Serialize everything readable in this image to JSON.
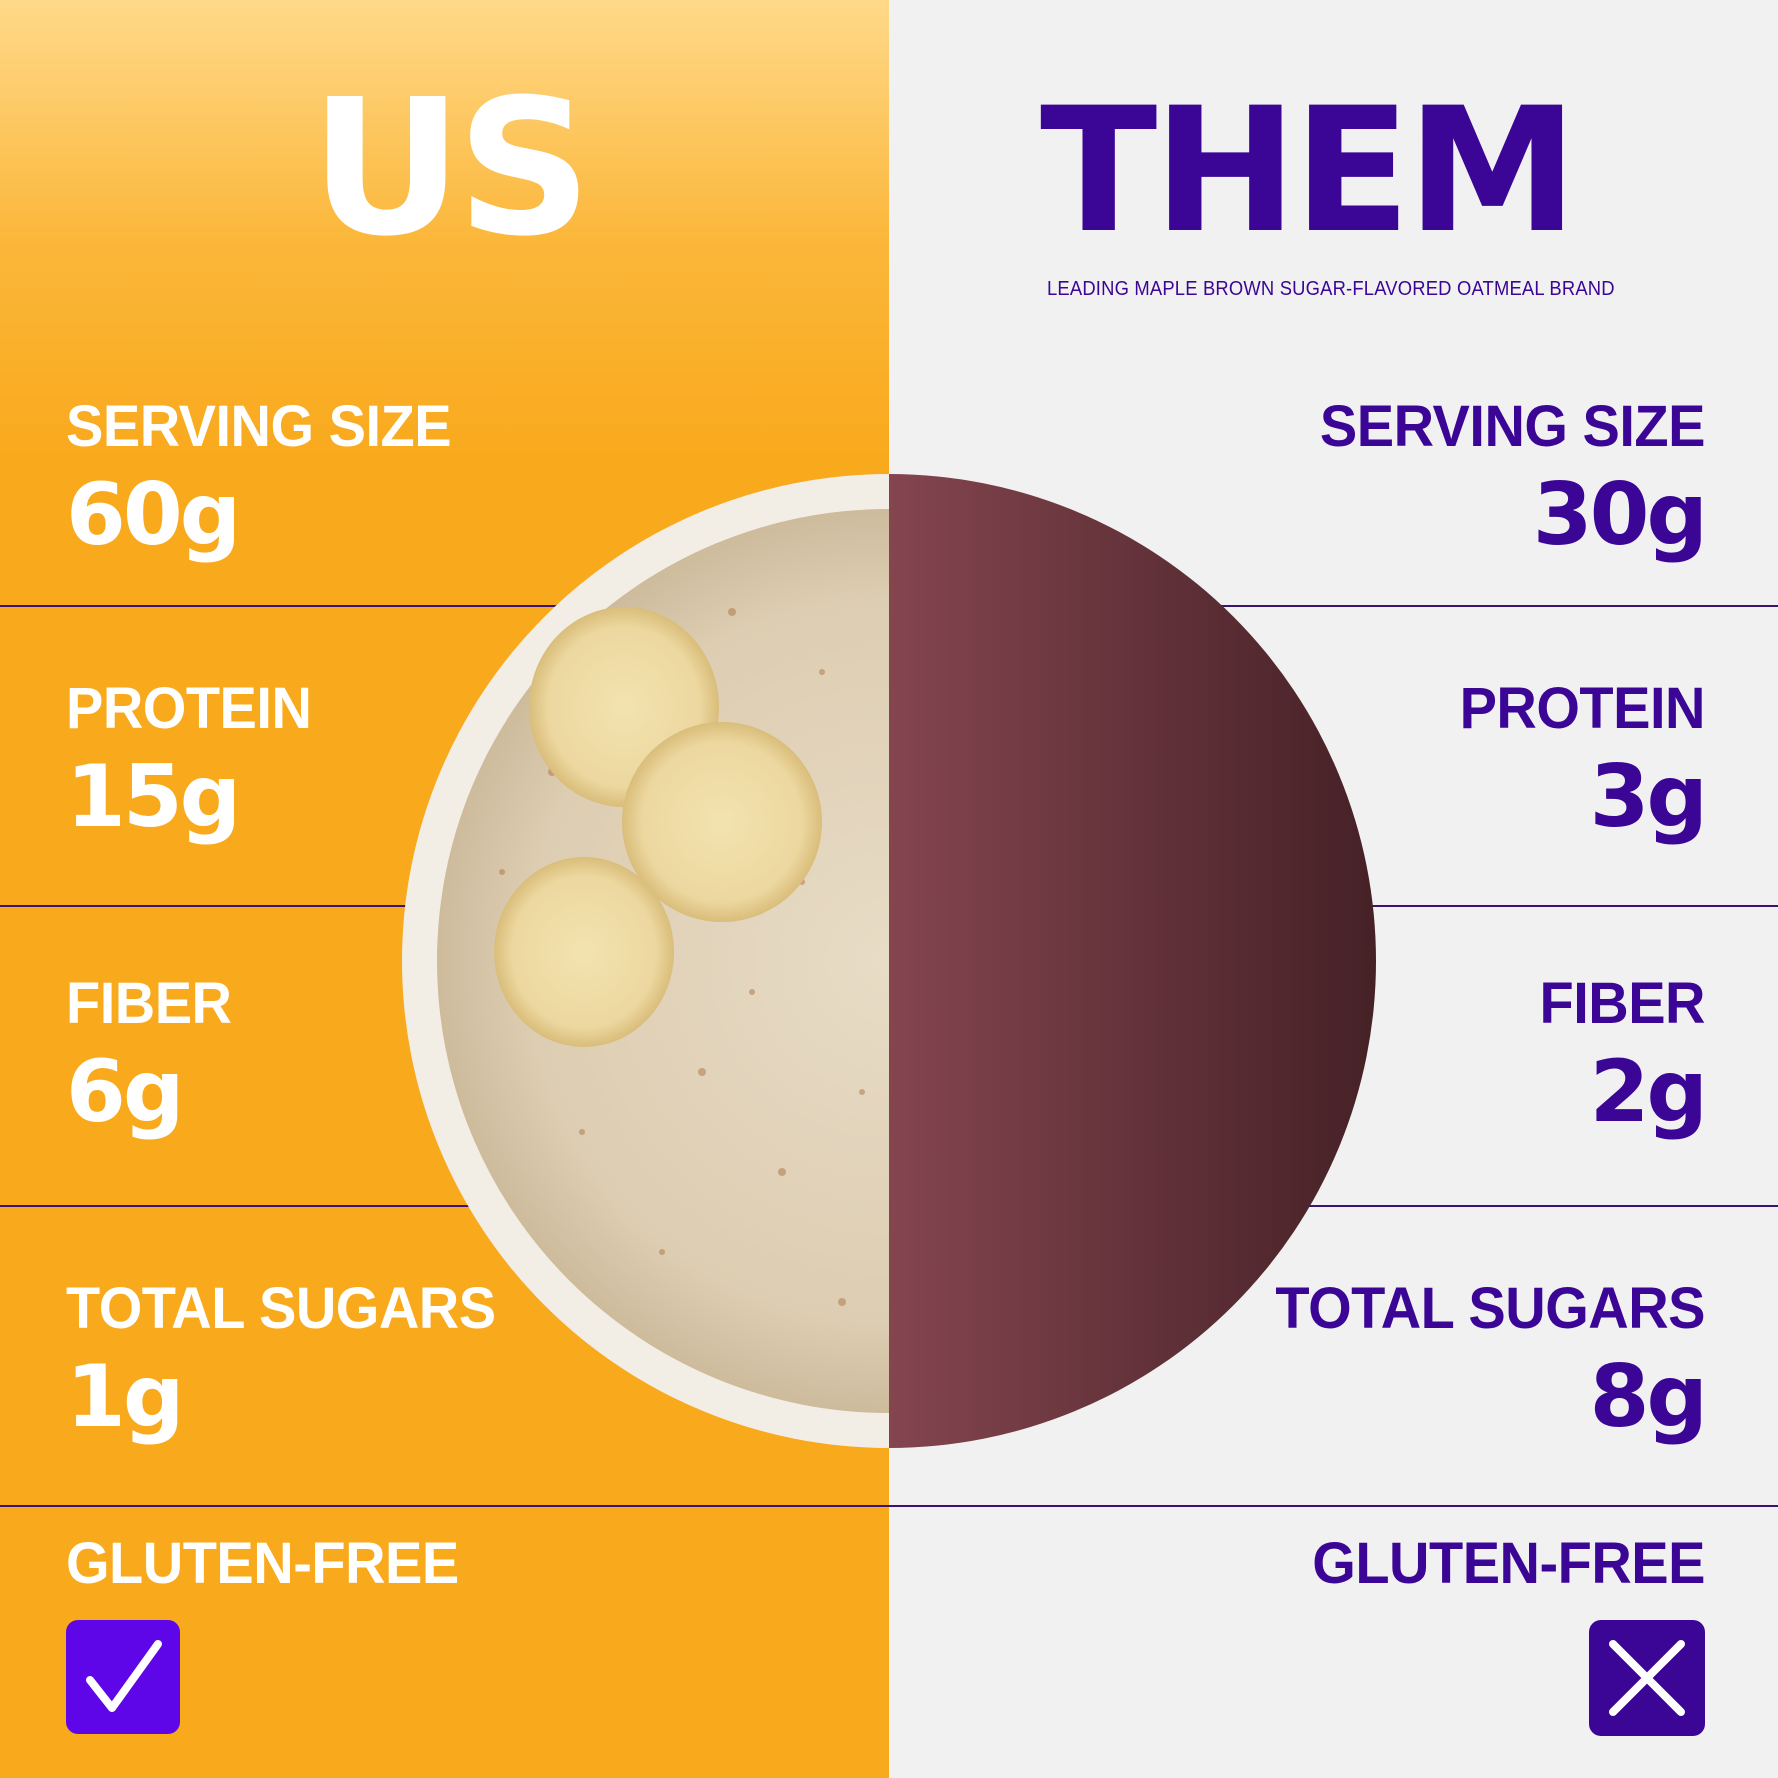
{
  "us": {
    "title": "US",
    "metrics": [
      {
        "label": "SERVING SIZE",
        "value": "60g"
      },
      {
        "label": "PROTEIN",
        "value": "15g"
      },
      {
        "label": "FIBER",
        "value": "6g"
      },
      {
        "label": "TOTAL SUGARS",
        "value": "1g"
      }
    ],
    "gluten_free_label": "GLUTEN-FREE",
    "gluten_free_icon": "checkmark-icon"
  },
  "them": {
    "title": "THEM",
    "subtitle": "LEADING MAPLE BROWN SUGAR-FLAVORED OATMEAL BRAND",
    "metrics": [
      {
        "label": "SERVING SIZE",
        "value": "30g"
      },
      {
        "label": "PROTEIN",
        "value": "3g"
      },
      {
        "label": "FIBER",
        "value": "2g"
      },
      {
        "label": "TOTAL SUGARS",
        "value": "8g"
      }
    ],
    "gluten_free_label": "GLUTEN-FREE",
    "gluten_free_icon": "x-mark-icon"
  },
  "colors": {
    "us_background": "#f9a91c",
    "them_background": "#f1f1f1",
    "them_text": "#3b0695",
    "check_box": "#5f06e8",
    "divider": "#3a1473",
    "them_half_circle": "#7e4350"
  }
}
